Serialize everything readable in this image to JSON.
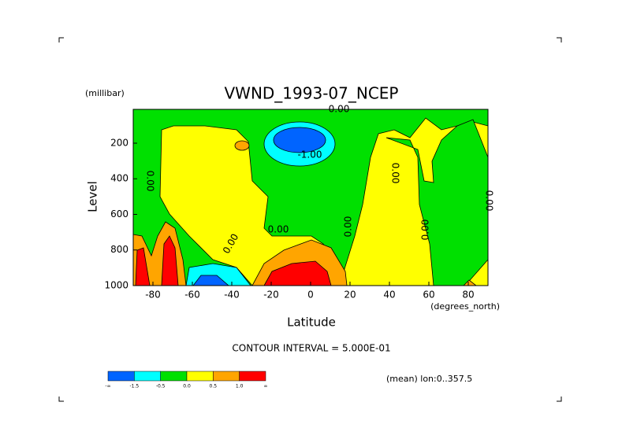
{
  "chart_data": {
    "type": "contour",
    "title": "VWND_1993-07_NCEP",
    "y_unit": "(millibar)",
    "ylabel": "Level",
    "xlabel": "Latitude",
    "x_unit": "(degrees_north)",
    "xlim": [
      -90,
      90
    ],
    "ylim": [
      1000,
      10
    ],
    "xticks": [
      -80,
      -60,
      -40,
      -20,
      0,
      20,
      40,
      60,
      80
    ],
    "yticks": [
      200,
      400,
      600,
      800,
      1000
    ],
    "contour_interval": "CONTOUR INTERVAL = 5.000E-01",
    "footer": "(mean) lon:0..357.5",
    "annotations": [
      "0.00",
      "-1.00",
      "0.00",
      "0.00",
      "0.00",
      "0.00",
      "0.00",
      "0.00",
      "0.00"
    ],
    "colorbar": {
      "labels": [
        "-∞",
        "-1.5",
        "-0.5",
        "0.0",
        "0.5",
        "1.0",
        "∞"
      ],
      "colors": [
        "#0064ff",
        "#00ffff",
        "#00e000",
        "#ffff00",
        "#ffa500",
        "#ff0000"
      ]
    }
  }
}
